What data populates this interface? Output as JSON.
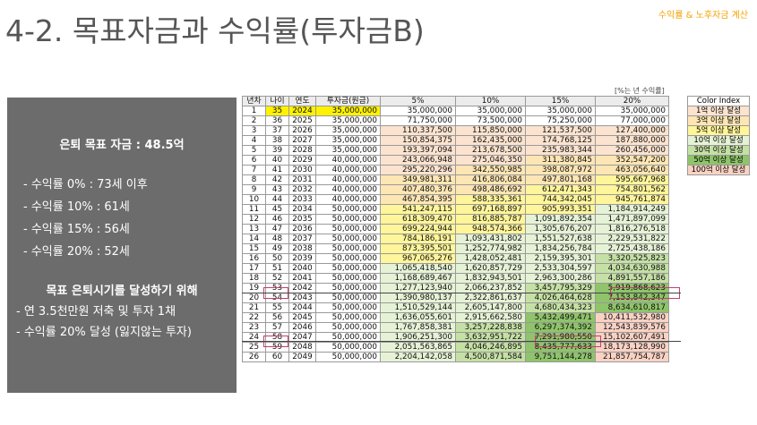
{
  "title": "4-2. 목표자금과 수익률(투자금B)",
  "top_right": "수익률 & 노후자금 계산",
  "side_panel": {
    "goal_label": "은퇴 목표 자금 : 48.5억",
    "lines": [
      "- 수익률   0% : 73세 이후",
      "- 수익률 10% : 61세",
      "- 수익률 15% : 56세",
      "- 수익률 20% : 52세"
    ],
    "subtitle": "목표 은퇴시기를 달성하기 위해",
    "bullets": [
      "- 연 3.5천만원 저축 및 투자 1채",
      "- 수익률 20% 달성 (잃지않는 투자)"
    ]
  },
  "unit_note": "[%는 년 수익률]",
  "table": {
    "headers": [
      "년차",
      "나이",
      "연도",
      "투자금(원금)",
      "5%",
      "10%",
      "15%",
      "20%"
    ],
    "rows": [
      [
        "1",
        "35",
        "2024",
        "35,000,000",
        "35,000,000",
        "35,000,000",
        "35,000,000",
        "35,000,000"
      ],
      [
        "2",
        "36",
        "2025",
        "35,000,000",
        "71,750,000",
        "73,500,000",
        "75,250,000",
        "77,000,000"
      ],
      [
        "3",
        "37",
        "2026",
        "35,000,000",
        "110,337,500",
        "115,850,000",
        "121,537,500",
        "127,400,000"
      ],
      [
        "4",
        "38",
        "2027",
        "35,000,000",
        "150,854,375",
        "162,435,000",
        "174,768,125",
        "187,880,000"
      ],
      [
        "5",
        "39",
        "2028",
        "35,000,000",
        "193,397,094",
        "213,678,500",
        "235,983,344",
        "260,456,000"
      ],
      [
        "6",
        "40",
        "2029",
        "40,000,000",
        "243,066,948",
        "275,046,350",
        "311,380,845",
        "352,547,200"
      ],
      [
        "7",
        "41",
        "2030",
        "40,000,000",
        "295,220,296",
        "342,550,985",
        "398,087,972",
        "463,056,640"
      ],
      [
        "8",
        "42",
        "2031",
        "40,000,000",
        "349,981,311",
        "416,806,084",
        "497,801,168",
        "595,667,968"
      ],
      [
        "9",
        "43",
        "2032",
        "40,000,000",
        "407,480,376",
        "498,486,692",
        "612,471,343",
        "754,801,562"
      ],
      [
        "10",
        "44",
        "2033",
        "40,000,000",
        "467,854,395",
        "588,335,361",
        "744,342,045",
        "945,761,874"
      ],
      [
        "11",
        "45",
        "2034",
        "50,000,000",
        "541,247,115",
        "697,168,897",
        "905,993,351",
        "1,184,914,249"
      ],
      [
        "12",
        "46",
        "2035",
        "50,000,000",
        "618,309,470",
        "816,885,787",
        "1,091,892,354",
        "1,471,897,099"
      ],
      [
        "13",
        "47",
        "2036",
        "50,000,000",
        "699,224,944",
        "948,574,366",
        "1,305,676,207",
        "1,816,276,518"
      ],
      [
        "14",
        "48",
        "2037",
        "50,000,000",
        "784,186,191",
        "1,093,431,802",
        "1,551,527,638",
        "2,229,531,822"
      ],
      [
        "15",
        "49",
        "2038",
        "50,000,000",
        "873,395,501",
        "1,252,774,982",
        "1,834,256,784",
        "2,725,438,186"
      ],
      [
        "16",
        "50",
        "2039",
        "50,000,000",
        "967,065,276",
        "1,428,052,481",
        "2,159,395,301",
        "3,320,525,823"
      ],
      [
        "17",
        "51",
        "2040",
        "50,000,000",
        "1,065,418,540",
        "1,620,857,729",
        "2,533,304,597",
        "4,034,630,988"
      ],
      [
        "18",
        "52",
        "2041",
        "50,000,000",
        "1,168,689,467",
        "1,832,943,501",
        "2,963,300,286",
        "4,891,557,186"
      ],
      [
        "19",
        "53",
        "2042",
        "50,000,000",
        "1,277,123,940",
        "2,066,237,852",
        "3,457,795,329",
        "5,919,868,623"
      ],
      [
        "20",
        "54",
        "2043",
        "50,000,000",
        "1,390,980,137",
        "2,322,861,637",
        "4,026,464,628",
        "7,153,842,347"
      ],
      [
        "21",
        "55",
        "2044",
        "50,000,000",
        "1,510,529,144",
        "2,605,147,800",
        "4,680,434,323",
        "8,634,610,817"
      ],
      [
        "22",
        "56",
        "2045",
        "50,000,000",
        "1,636,055,601",
        "2,915,662,580",
        "5,432,499,471",
        "10,411,532,980"
      ],
      [
        "23",
        "57",
        "2046",
        "50,000,000",
        "1,767,858,381",
        "3,257,228,838",
        "6,297,374,392",
        "12,543,839,576"
      ],
      [
        "24",
        "58",
        "2047",
        "50,000,000",
        "1,906,251,300",
        "3,632,951,722",
        "7,291,980,550",
        "15,102,607,491"
      ],
      [
        "25",
        "59",
        "2048",
        "50,000,000",
        "2,051,563,865",
        "4,046,246,895",
        "8,435,777,633",
        "18,173,128,990"
      ],
      [
        "26",
        "60",
        "2049",
        "50,000,000",
        "2,204,142,058",
        "4,500,871,584",
        "9,751,144,278",
        "21,857,754,787"
      ]
    ]
  },
  "legend": {
    "title": "Color Index",
    "items": [
      "1억 이상 달성",
      "3억 이상 달성",
      "5억 이상 달성",
      "10억 이상 달성",
      "30억 이상 달성",
      "50억 이상 달성",
      "100억 이상 달성"
    ]
  },
  "colors": {
    "1억": "#fbe3cf",
    "3억": "#fde6b4",
    "5억": "#fff59a",
    "10억": "#e6f2d6",
    "30억": "#c5e0a5",
    "50억": "#8fc46a",
    "100억": "#f9d2c4",
    "start_highlight": "#fff200",
    "marker": "#c04070"
  }
}
